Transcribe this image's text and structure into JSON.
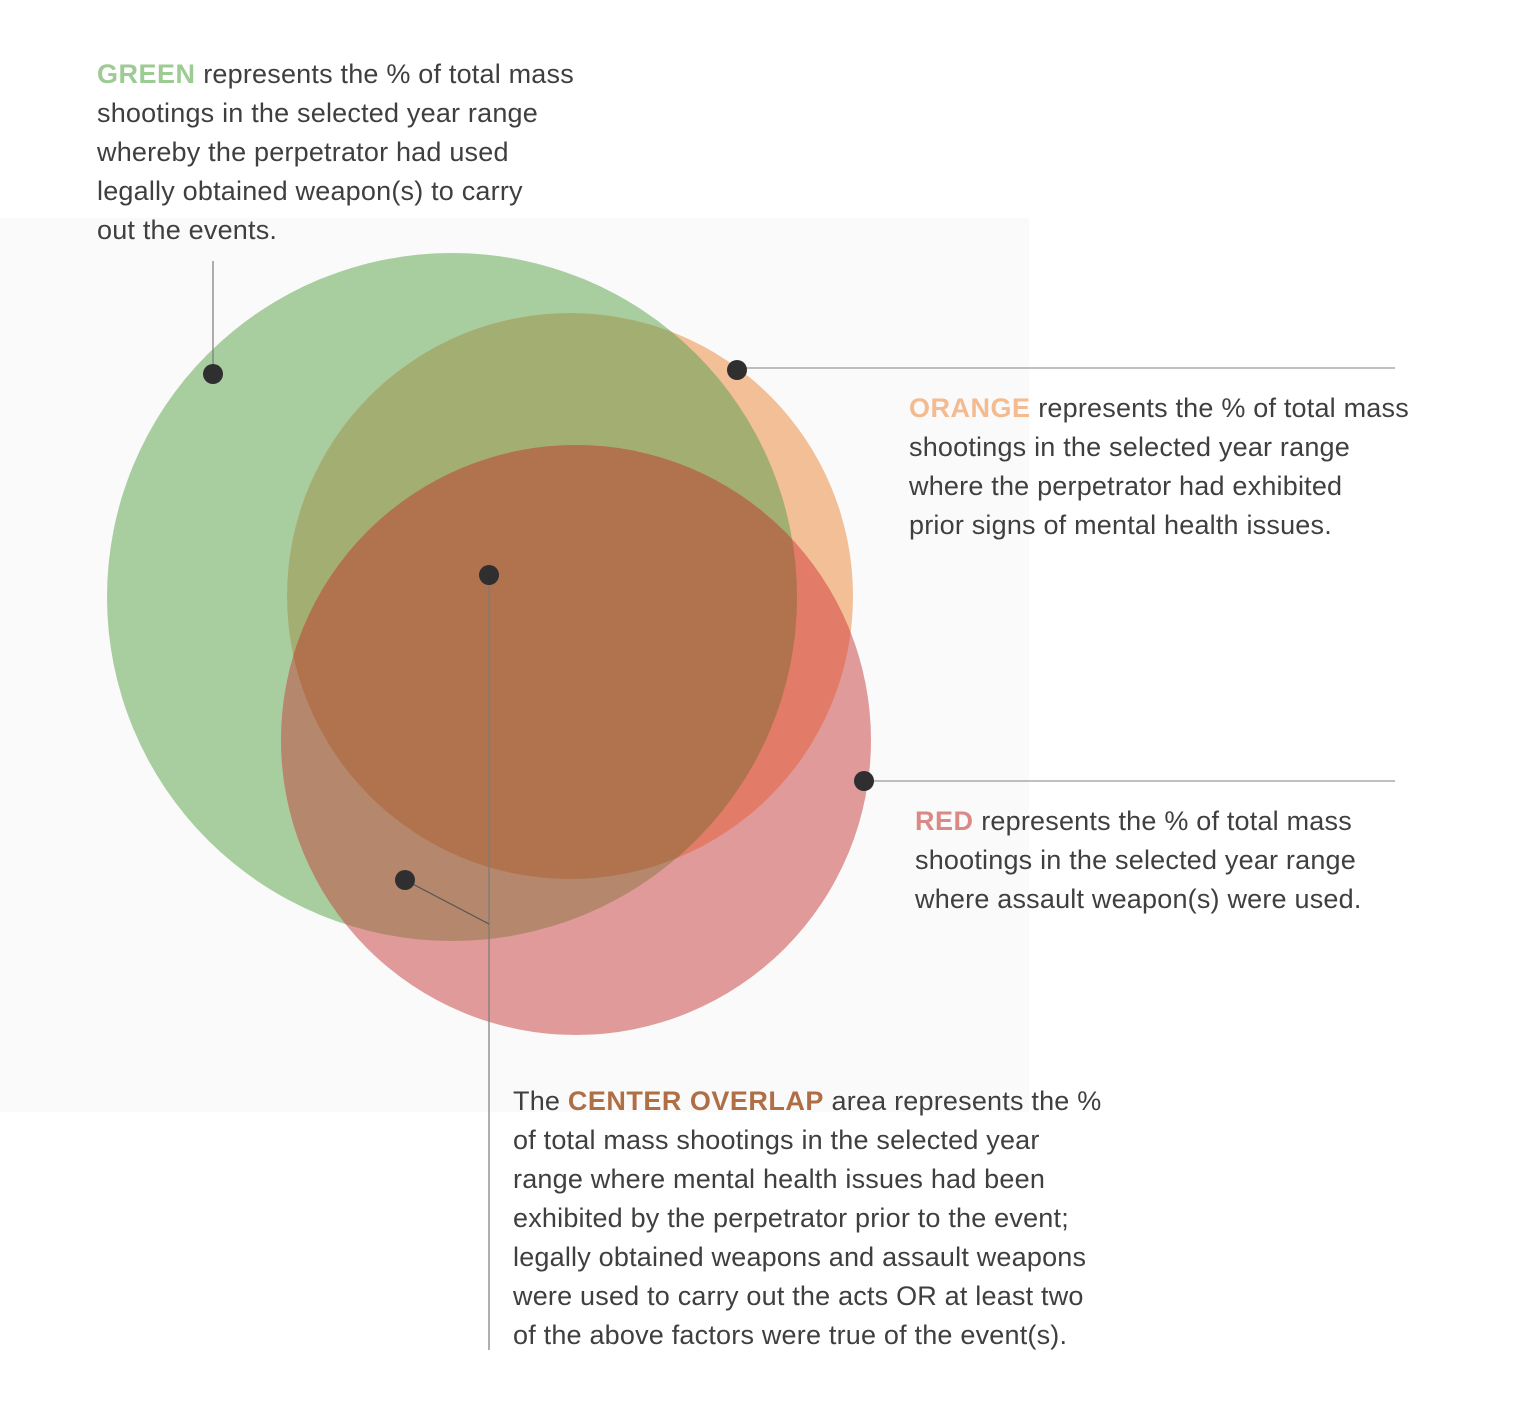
{
  "colors": {
    "green": "#9ccb93",
    "orange": "#f3bb8f",
    "red": "#da8987",
    "center": "#b06e45",
    "text": "#3f3f3f",
    "marker": "#2f2f2f"
  },
  "legend": {
    "green": {
      "keyword": "GREEN",
      "lines": [
        " represents the % of total mass",
        "shootings in the selected year range",
        "whereby the perpetrator had used",
        "legally obtained weapon(s) to carry",
        "out the events."
      ]
    },
    "orange": {
      "keyword": "ORANGE",
      "lines": [
        " represents the % of total mass",
        "shootings in the selected year range",
        "where the perpetrator had exhibited",
        "prior signs of mental health issues."
      ]
    },
    "red": {
      "keyword": "RED",
      "lines": [
        " represents the % of total mass",
        "shootings in the selected year range",
        "where assault weapon(s) were used."
      ]
    },
    "center": {
      "prefix": "The ",
      "keyword": "CENTER OVERLAP",
      "lines": [
        " area represents the %",
        "of total mass shootings in the selected year",
        "range where mental health issues had been",
        "exhibited by the perpetrator prior to the event;",
        "legally obtained weapons and assault weapons",
        "were used to carry out the acts OR at least two",
        "of the above factors were true of the event(s)."
      ]
    }
  }
}
